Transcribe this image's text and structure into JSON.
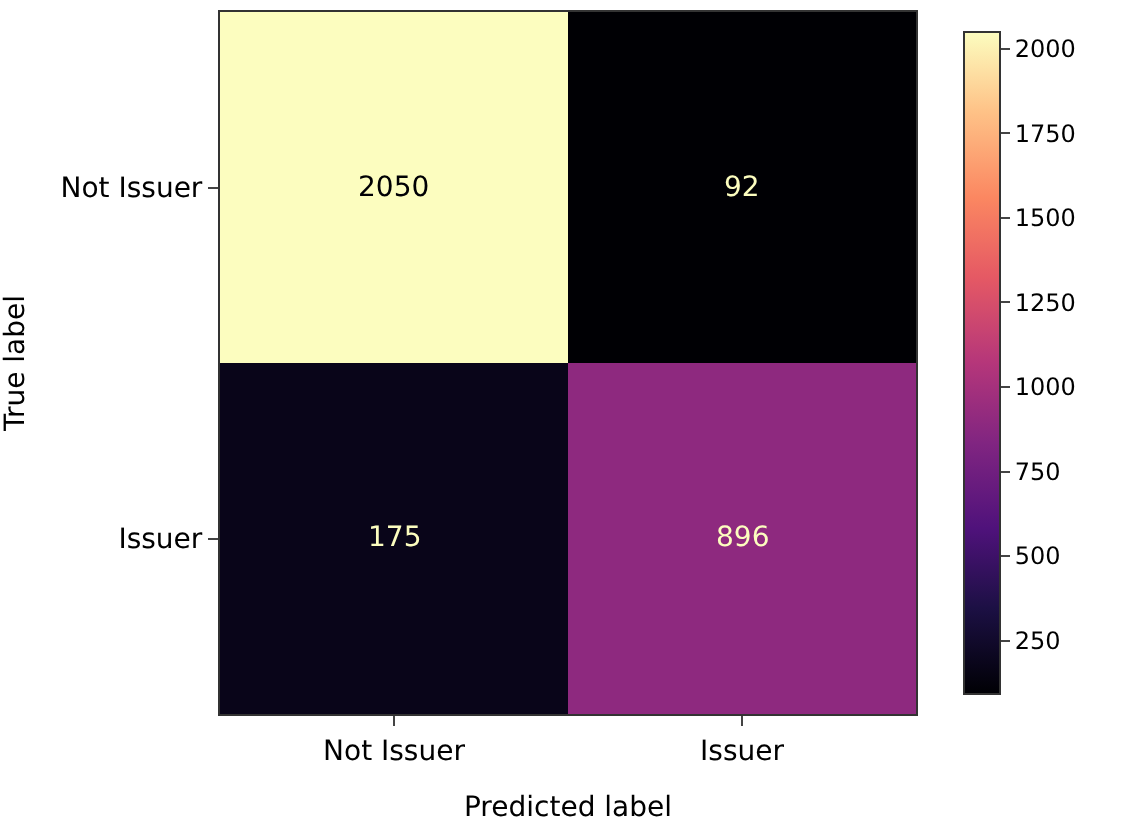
{
  "chart_data": {
    "type": "heatmap",
    "xlabel": "Predicted label",
    "ylabel": "True label",
    "categories": [
      "Not Issuer",
      "Issuer"
    ],
    "y_categories": [
      "Not Issuer",
      "Issuer"
    ],
    "cells": [
      [
        2050,
        92
      ],
      [
        175,
        896
      ]
    ],
    "data_labels": true,
    "clim": [
      92,
      2050
    ],
    "cticks": [
      250,
      500,
      750,
      1000,
      1250,
      1500,
      1750,
      2000
    ]
  }
}
